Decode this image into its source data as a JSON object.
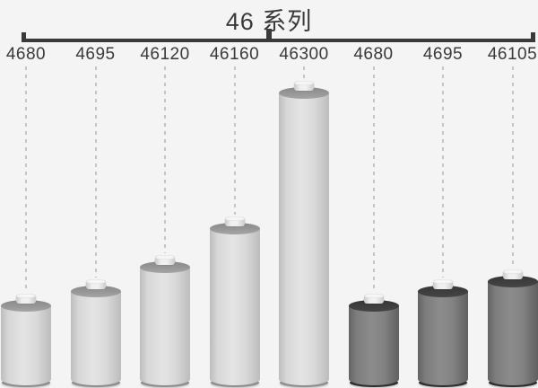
{
  "title": "46 系列",
  "chart_data": {
    "type": "bar",
    "subtype": "pictorial-battery-cylinders",
    "title": "46 系列",
    "categories": [
      "4680",
      "4695",
      "46120",
      "46160",
      "46300",
      "4680",
      "4695",
      "46105"
    ],
    "values": [
      80,
      95,
      120,
      160,
      300,
      80,
      95,
      105
    ],
    "values_note": "relative cylinder heights depicted (mm height encoded in 46xx model name)",
    "variants": [
      "light",
      "light",
      "light",
      "light",
      "light",
      "dark",
      "dark",
      "dark"
    ],
    "legend_position": "none",
    "grid": false,
    "annotations": [
      "bracket spanning all categories labeled 46 系列",
      "dashed connector from each label to its cylinder"
    ]
  },
  "colors": {
    "background": "#f4f4f4",
    "ink": "#3a3a3a",
    "connector_dash": "#c5c5c5",
    "light_body": "#dcdcdc",
    "light_rim": "#979797",
    "dark_body": "#7d7d7d",
    "dark_rim": "#3e3e3e"
  }
}
